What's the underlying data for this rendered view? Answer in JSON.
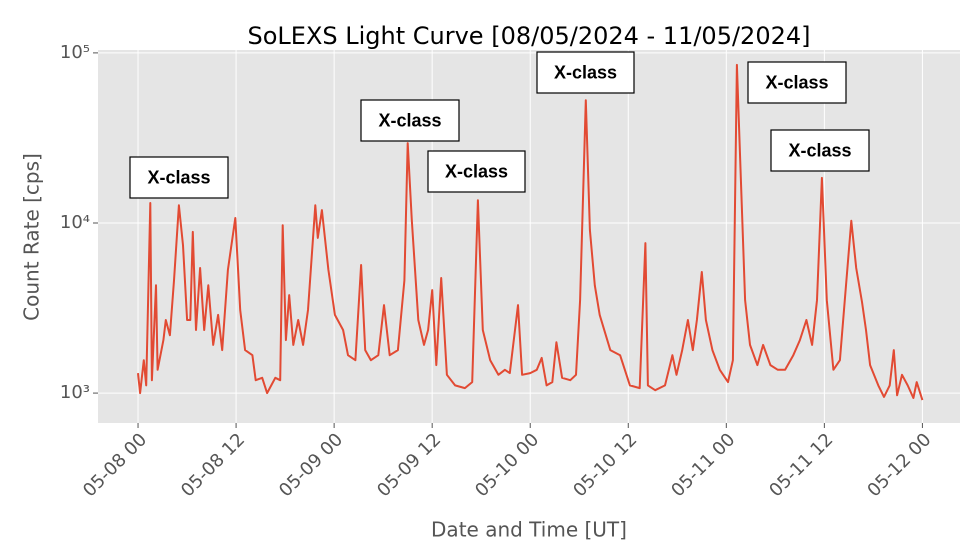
{
  "chart_data": {
    "type": "line",
    "title": "SoLEXS Light Curve [08/05/2024 - 11/05/2024]",
    "x_label": "Date and Time [UT]",
    "y_label": "Count Rate [cps]",
    "log_y": true,
    "grid": true,
    "color": "#e24a33",
    "xlim": [
      -4.9,
      100.6
    ],
    "xticks": [
      {
        "value": 0,
        "label": "05-08 00"
      },
      {
        "value": 12,
        "label": "05-08 12"
      },
      {
        "value": 24,
        "label": "05-09 00"
      },
      {
        "value": 36,
        "label": "05-09 12"
      },
      {
        "value": 48,
        "label": "05-10 00"
      },
      {
        "value": 60,
        "label": "05-10 12"
      },
      {
        "value": 72,
        "label": "05-11 00"
      },
      {
        "value": 84,
        "label": "05-11 12"
      },
      {
        "value": 96,
        "label": "05-12 00"
      }
    ],
    "ylim": [
      667,
      104000
    ],
    "yticks": [
      {
        "value": 1000,
        "label": "10³"
      },
      {
        "value": 10000,
        "label": "10⁴"
      },
      {
        "value": 100000,
        "label": "10⁵"
      }
    ],
    "x": [
      0,
      0.25,
      0.7,
      1.0,
      1.5,
      1.7,
      2.2,
      2.4,
      3.1,
      3.4,
      3.9,
      4.4,
      5.0,
      5.5,
      6.0,
      6.4,
      6.7,
      7.1,
      7.6,
      8.1,
      8.6,
      9.2,
      9.8,
      10.3,
      11.0,
      11.9,
      12.5,
      13.1,
      14.0,
      14.4,
      15.2,
      15.8,
      16.8,
      17.4,
      17.7,
      18.1,
      18.5,
      19.0,
      19.6,
      20.2,
      20.8,
      21.7,
      22.0,
      22.5,
      23.3,
      24.1,
      25.1,
      25.7,
      26.6,
      27.3,
      27.8,
      28.5,
      29.4,
      30.1,
      30.8,
      31.8,
      32.6,
      33.0,
      33.5,
      34.3,
      35.0,
      35.5,
      36.0,
      36.5,
      37.1,
      37.8,
      38.8,
      40.0,
      40.9,
      41.6,
      42.2,
      43.1,
      44.1,
      44.9,
      45.5,
      46.5,
      47.0,
      48.0,
      48.8,
      49.4,
      50.0,
      50.7,
      51.2,
      51.9,
      52.9,
      53.6,
      54.1,
      54.8,
      55.3,
      55.9,
      56.5,
      57.8,
      59.0,
      60.2,
      61.4,
      62.1,
      62.4,
      63.3,
      64.5,
      65.4,
      65.9,
      66.6,
      67.3,
      67.9,
      68.4,
      69.0,
      69.5,
      70.3,
      71.2,
      72.2,
      72.8,
      73.3,
      73.7,
      74.3,
      74.9,
      75.8,
      76.5,
      77.4,
      78.3,
      79.2,
      80.2,
      81.0,
      81.8,
      82.5,
      83.1,
      83.7,
      84.3,
      85.1,
      85.9,
      86.5,
      87.3,
      87.9,
      88.6,
      89.1,
      89.6,
      90.6,
      91.3,
      92.0,
      92.5,
      92.9,
      93.5,
      94.2,
      94.9,
      95.3,
      96.0
    ],
    "values": [
      1310,
      1000,
      1560,
      1110,
      13100,
      1190,
      4300,
      1370,
      2050,
      2690,
      2190,
      4600,
      12700,
      7400,
      2690,
      2690,
      8860,
      2350,
      5440,
      2350,
      4300,
      1920,
      2880,
      1790,
      5300,
      10700,
      3080,
      1790,
      1670,
      1190,
      1230,
      1000,
      1230,
      1190,
      9700,
      2050,
      3770,
      1920,
      2690,
      1920,
      3080,
      12700,
      8170,
      11900,
      5300,
      2880,
      2350,
      1670,
      1560,
      5660,
      1790,
      1560,
      1670,
      3290,
      1670,
      1790,
      4600,
      29500,
      10400,
      2690,
      1920,
      2350,
      4030,
      1460,
      4750,
      1280,
      1110,
      1070,
      1160,
      13600,
      2350,
      1560,
      1280,
      1370,
      1310,
      3290,
      1280,
      1310,
      1370,
      1610,
      1110,
      1160,
      1990,
      1230,
      1190,
      1280,
      3520,
      52700,
      9100,
      4300,
      2880,
      1790,
      1670,
      1110,
      1070,
      7620,
      1110,
      1040,
      1110,
      1670,
      1280,
      1790,
      2690,
      1790,
      2690,
      5150,
      2690,
      1790,
      1370,
      1160,
      1560,
      85000,
      23400,
      3520,
      1920,
      1460,
      1920,
      1460,
      1370,
      1370,
      1670,
      2050,
      2690,
      1920,
      3520,
      18400,
      3520,
      1370,
      1560,
      3520,
      10300,
      5440,
      3430,
      2350,
      1460,
      1110,
      950,
      1110,
      1790,
      970,
      1280,
      1110,
      935,
      1160,
      910
    ],
    "annotations": [
      "X-class",
      "X-class",
      "X-class",
      "X-class",
      "X-class",
      "X-class"
    ]
  }
}
